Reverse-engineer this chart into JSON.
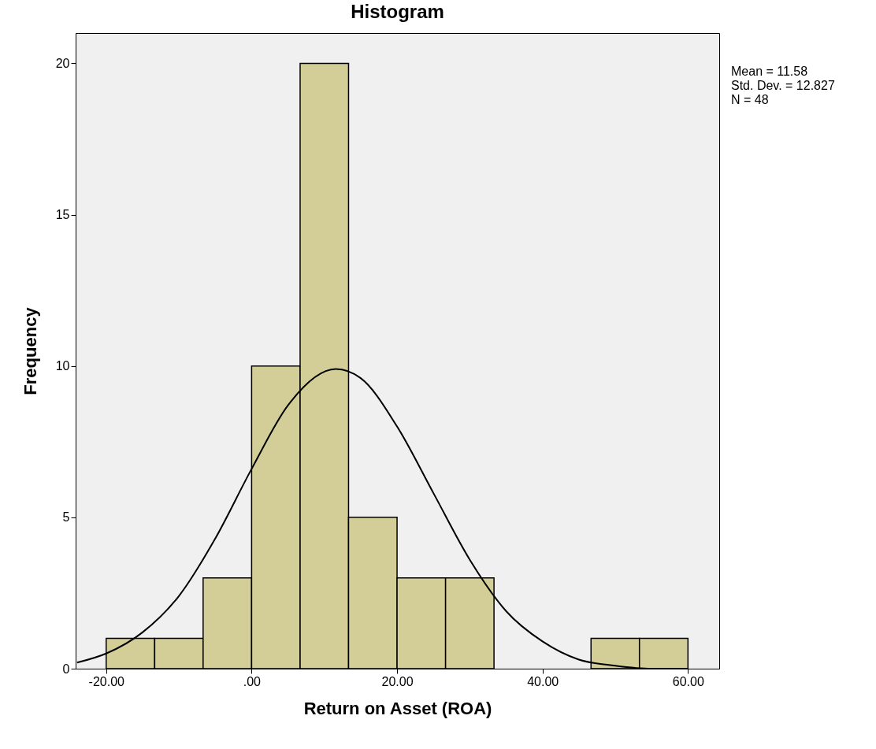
{
  "chart_data": {
    "type": "histogram",
    "title": "Histogram",
    "xlabel": "Return on Asset (ROA)",
    "ylabel": "Frequency",
    "bins": [
      -20,
      -13.33,
      -6.67,
      0,
      6.67,
      13.33,
      20,
      26.67,
      33.33,
      40,
      46.67,
      53.33,
      60
    ],
    "values": [
      1,
      1,
      3,
      10,
      20,
      5,
      3,
      3,
      0,
      0,
      1,
      1
    ],
    "color": "#d3cd97",
    "series": [
      {
        "type": "line",
        "color": "#000000",
        "x": [
          -24,
          -20,
          -15,
          -10,
          -5,
          0,
          5,
          11.58,
          15,
          20,
          25,
          30,
          35,
          40,
          45,
          50,
          55,
          60
        ],
        "values": [
          0.2,
          0.5,
          1.2,
          2.4,
          4.3,
          6.6,
          8.7,
          9.9,
          9.6,
          8,
          5.8,
          3.6,
          1.9,
          0.9,
          0.3,
          0.1,
          0,
          0
        ]
      }
    ],
    "xlim": [
      -24.2,
      64.3
    ],
    "xticks": [
      {
        "value": -20,
        "label": "-20.00"
      },
      {
        "value": 0,
        "label": ".00"
      },
      {
        "value": 20,
        "label": "20.00"
      },
      {
        "value": 40,
        "label": "40.00"
      },
      {
        "value": 60,
        "label": "60.00"
      }
    ],
    "ylim": [
      0,
      21
    ],
    "yticks": [
      0,
      5,
      10,
      15,
      20
    ],
    "grid": false,
    "annotations": [
      "Mean = 11.58",
      "Std. Dev. = 12.827",
      "N = 48"
    ]
  }
}
